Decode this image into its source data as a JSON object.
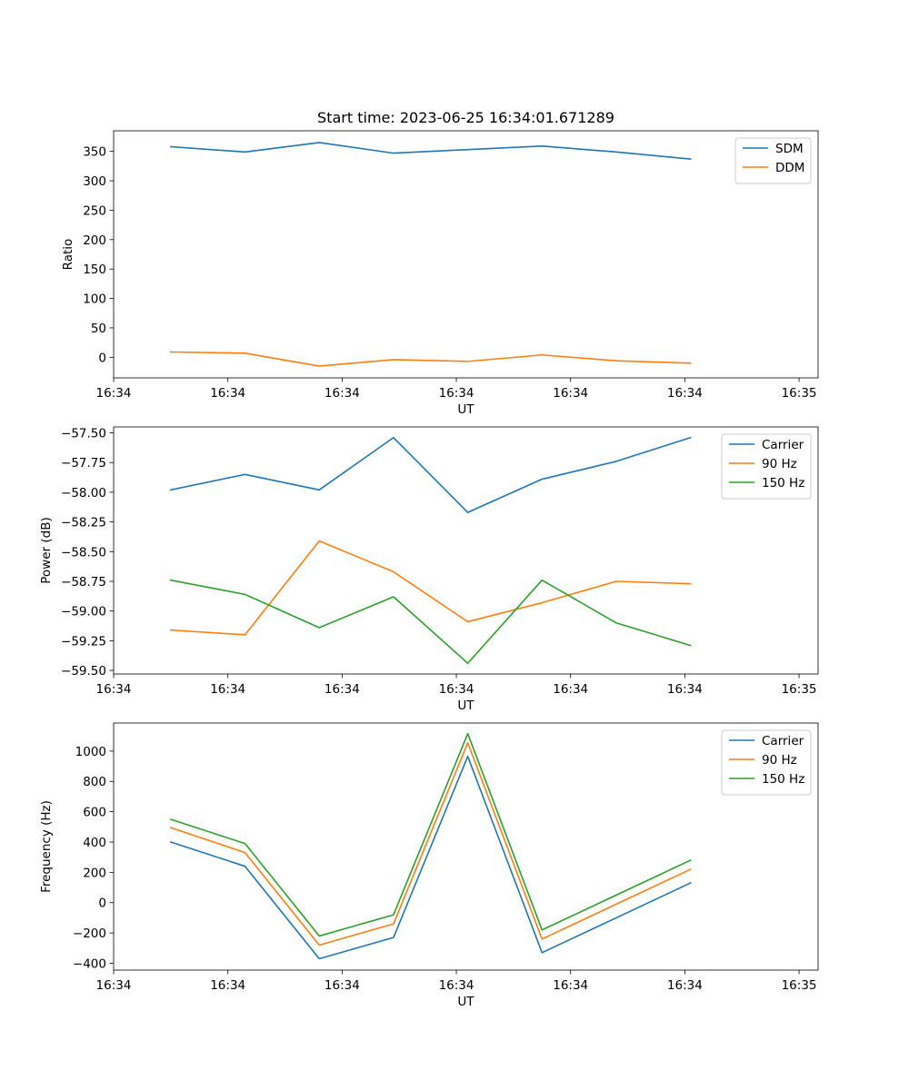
{
  "title": "Start time: 2023-06-25 16:34:01.671289",
  "chart_data": [
    {
      "type": "line",
      "xlabel": "UT",
      "ylabel": "Ratio",
      "xlim": [
        0,
        18.5
      ],
      "ylim": [
        -35,
        385
      ],
      "x_ticks": [
        {
          "value": 0,
          "label": "16:34"
        },
        {
          "value": 3,
          "label": "16:34"
        },
        {
          "value": 6,
          "label": "16:34"
        },
        {
          "value": 9,
          "label": "16:34"
        },
        {
          "value": 12,
          "label": "16:34"
        },
        {
          "value": 15,
          "label": "16:34"
        },
        {
          "value": 18,
          "label": "16:35"
        }
      ],
      "y_ticks": [
        0,
        50,
        100,
        150,
        200,
        250,
        300,
        350
      ],
      "x": [
        1.5,
        3.45,
        5.4,
        7.35,
        9.3,
        11.25,
        13.2,
        15.15
      ],
      "series": [
        {
          "name": "SDM",
          "color": "#1f77b4",
          "values": [
            358,
            349,
            365,
            347,
            353,
            359,
            349,
            337
          ]
        },
        {
          "name": "DDM",
          "color": "#ff7f0e",
          "values": [
            9,
            7,
            -15,
            -4,
            -7,
            4,
            -6,
            -10
          ]
        }
      ],
      "legend": "upper right",
      "grid": false
    },
    {
      "type": "line",
      "xlabel": "UT",
      "ylabel": "Power (dB)",
      "xlim": [
        0,
        18.5
      ],
      "ylim": [
        -59.53,
        -57.45
      ],
      "x_ticks": [
        {
          "value": 0,
          "label": "16:34"
        },
        {
          "value": 3,
          "label": "16:34"
        },
        {
          "value": 6,
          "label": "16:34"
        },
        {
          "value": 9,
          "label": "16:34"
        },
        {
          "value": 12,
          "label": "16:34"
        },
        {
          "value": 15,
          "label": "16:34"
        },
        {
          "value": 18,
          "label": "16:35"
        }
      ],
      "y_ticks": [
        -59.5,
        -59.25,
        -59.0,
        -58.75,
        -58.5,
        -58.25,
        -58.0,
        -57.75,
        -57.5
      ],
      "x": [
        1.5,
        3.45,
        5.4,
        7.35,
        9.3,
        11.25,
        13.2,
        15.15
      ],
      "series": [
        {
          "name": "Carrier",
          "color": "#1f77b4",
          "values": [
            -57.98,
            -57.85,
            -57.98,
            -57.54,
            -58.17,
            -57.89,
            -57.74,
            -57.54
          ]
        },
        {
          "name": "90 Hz",
          "color": "#ff7f0e",
          "values": [
            -59.16,
            -59.2,
            -58.41,
            -58.67,
            -59.09,
            -58.93,
            -58.75,
            -58.77
          ]
        },
        {
          "name": "150 Hz",
          "color": "#2ca02c",
          "values": [
            -58.74,
            -58.86,
            -59.14,
            -58.88,
            -59.44,
            -58.74,
            -59.1,
            -59.29
          ]
        }
      ],
      "legend": "upper right",
      "grid": false
    },
    {
      "type": "line",
      "xlabel": "UT",
      "ylabel": "Frequency (Hz)",
      "xlim": [
        0,
        18.5
      ],
      "ylim": [
        -445,
        1185
      ],
      "x_ticks": [
        {
          "value": 0,
          "label": "16:34"
        },
        {
          "value": 3,
          "label": "16:34"
        },
        {
          "value": 6,
          "label": "16:34"
        },
        {
          "value": 9,
          "label": "16:34"
        },
        {
          "value": 12,
          "label": "16:34"
        },
        {
          "value": 15,
          "label": "16:34"
        },
        {
          "value": 18,
          "label": "16:35"
        }
      ],
      "y_ticks": [
        -400,
        -200,
        0,
        200,
        400,
        600,
        800,
        1000
      ],
      "x": [
        1.5,
        3.45,
        5.4,
        7.35,
        9.3,
        11.25,
        13.2,
        15.15
      ],
      "series": [
        {
          "name": "Carrier",
          "color": "#1f77b4",
          "values": [
            400,
            240,
            -370,
            -230,
            965,
            -330,
            -100,
            130
          ]
        },
        {
          "name": "90 Hz",
          "color": "#ff7f0e",
          "values": [
            495,
            330,
            -280,
            -140,
            1055,
            -240,
            -10,
            220
          ]
        },
        {
          "name": "150 Hz",
          "color": "#2ca02c",
          "values": [
            550,
            390,
            -220,
            -80,
            1115,
            -180,
            50,
            280
          ]
        }
      ],
      "legend": "upper right",
      "grid": false
    }
  ]
}
